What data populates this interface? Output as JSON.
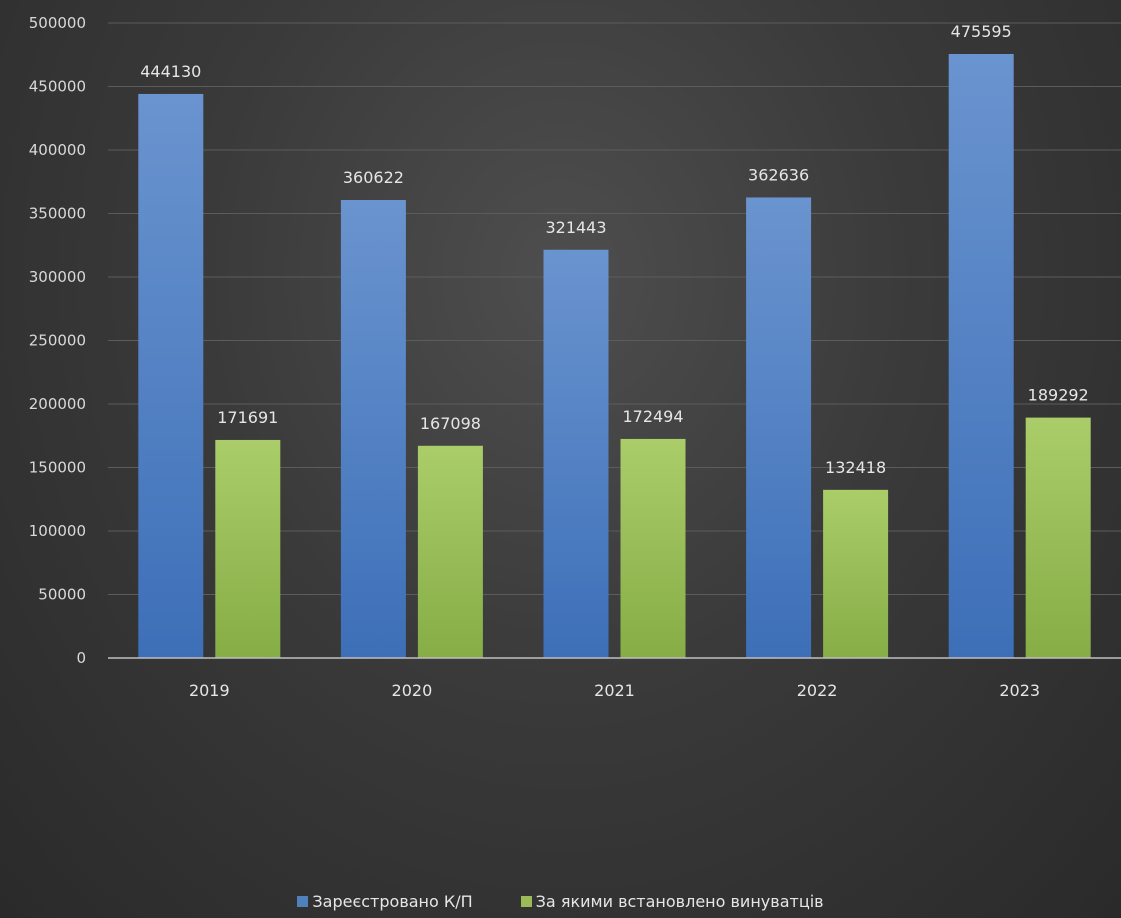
{
  "chart_data": {
    "type": "bar",
    "categories": [
      "2019",
      "2020",
      "2021",
      "2022",
      "2023"
    ],
    "series": [
      {
        "name": "Зареєстровано К/П",
        "values": [
          444130,
          360622,
          321443,
          362636,
          475595
        ],
        "color": "#4f81bd"
      },
      {
        "name": "За якими встановлено винуватців",
        "values": [
          171691,
          167098,
          172494,
          132418,
          189292
        ],
        "color": "#9bbb59"
      }
    ],
    "title": "",
    "xlabel": "",
    "ylabel": "",
    "ylim": [
      0,
      500000
    ],
    "yticks": [
      "0",
      "50000",
      "100000",
      "150000",
      "200000",
      "250000",
      "300000",
      "350000",
      "400000",
      "450000",
      "500000"
    ],
    "grid": true,
    "legend_position": "bottom",
    "data_labels": true
  }
}
